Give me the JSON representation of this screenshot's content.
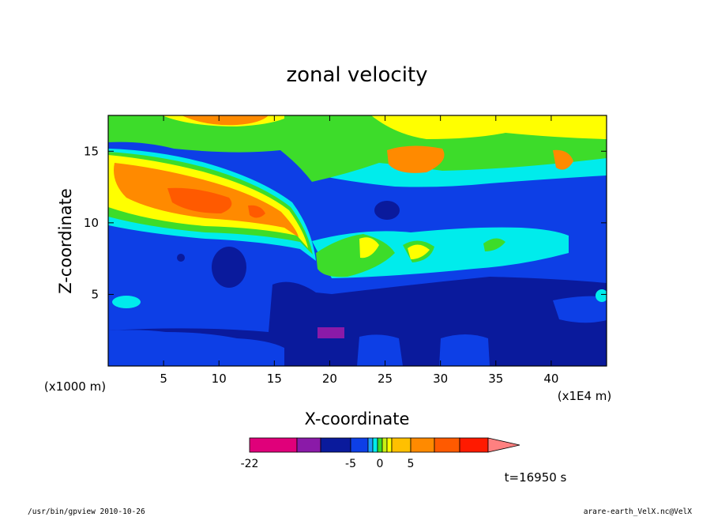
{
  "chart_data": {
    "type": "heatmap",
    "title": "zonal velocity",
    "xlabel": "X-coordinate",
    "ylabel": "Z-coordinate",
    "x_unit": "(x1E4 m)",
    "y_unit": "(x1000 m)",
    "xlim": [
      0,
      45
    ],
    "ylim": [
      0,
      17.5
    ],
    "x_ticks": [
      5,
      10,
      15,
      20,
      25,
      30,
      35,
      40
    ],
    "y_ticks": [
      5,
      10,
      15
    ],
    "colorbar": {
      "tick_labels": [
        "-22",
        "-5",
        "0",
        "5"
      ],
      "tick_values": [
        -22,
        -5,
        0,
        5
      ],
      "colors": [
        "#e0007a",
        "#8a1aa8",
        "#0a1a9c",
        "#0d3fe6",
        "#1ea0ff",
        "#00ecec",
        "#3ddc2a",
        "#c8f014",
        "#ffff00",
        "#ffc000",
        "#ff8a00",
        "#ff5a00",
        "#ff1a00",
        "#ff8080"
      ],
      "extends_max": true
    },
    "annotation": "t=16950 s",
    "footer_left": "/usr/bin/gpview   2010-10-26",
    "footer_right": "arare-earth_VelX.nc@VelX"
  }
}
